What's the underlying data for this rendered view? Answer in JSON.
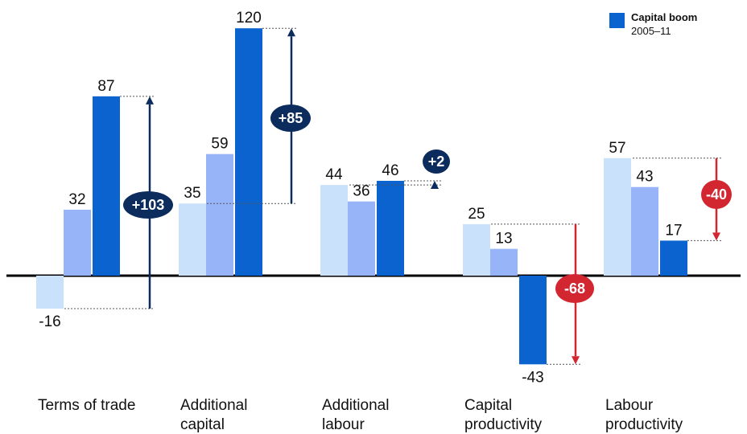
{
  "chart_data": {
    "type": "bar",
    "categories": [
      [
        "Terms of trade"
      ],
      [
        "Additional",
        "capital"
      ],
      [
        "Additional",
        "labour"
      ],
      [
        "Capital",
        "productivity"
      ],
      [
        "Labour",
        "productivity"
      ]
    ],
    "series": [
      {
        "values": [
          -16,
          35,
          44,
          25,
          57
        ],
        "color": "#c9e1fa"
      },
      {
        "values": [
          32,
          59,
          36,
          13,
          43
        ],
        "color": "#97b4f8"
      },
      {
        "name": "Capital boom",
        "values": [
          87,
          120,
          46,
          -43,
          17
        ],
        "color": "#0a63cf"
      }
    ],
    "changes": [
      {
        "label": "+103",
        "from": -16,
        "to": 87,
        "color": "#0c2c5e"
      },
      {
        "label": "+85",
        "from": 35,
        "to": 120,
        "color": "#0c2c5e"
      },
      {
        "label": "+2",
        "from": 44,
        "to": 46,
        "color": "#0c2c5e"
      },
      {
        "label": "-68",
        "from": 25,
        "to": -43,
        "color": "#d22630"
      },
      {
        "label": "-40",
        "from": 57,
        "to": 17,
        "color": "#d22630"
      }
    ],
    "legend": {
      "title": "Capital boom",
      "subtitle": "2005–11",
      "position": "top-right"
    },
    "ylim": [
      -60,
      130
    ],
    "grid": false,
    "baseline_color": "#000000"
  }
}
